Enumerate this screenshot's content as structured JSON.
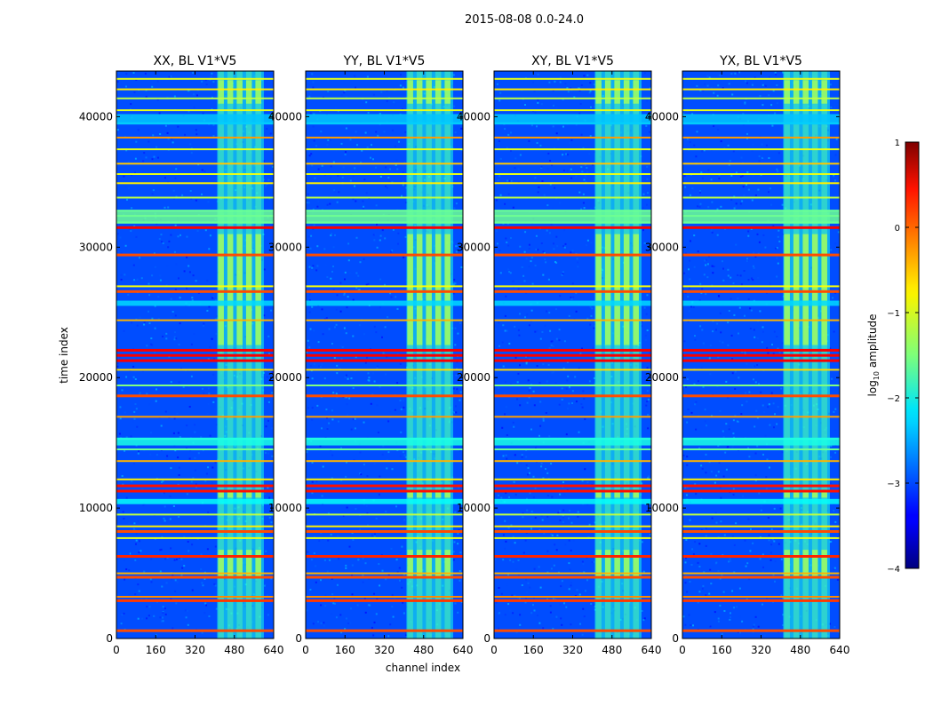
{
  "chart_data": {
    "type": "heatmap",
    "suptitle": "2015-08-08 0.0-24.0",
    "xlabel": "channel index",
    "ylabel": "time index",
    "xlim": [
      0,
      640
    ],
    "ylim": [
      0,
      43500
    ],
    "xticks": [
      0,
      160,
      320,
      480,
      640
    ],
    "yticks": [
      0,
      10000,
      20000,
      30000,
      40000
    ],
    "panels": [
      {
        "title": "XX, BL V1*V5",
        "polarization": "XX"
      },
      {
        "title": "YY, BL V1*V5",
        "polarization": "YY"
      },
      {
        "title": "XY, BL V1*V5",
        "polarization": "XY"
      },
      {
        "title": "YX, BL V1*V5",
        "polarization": "YX"
      }
    ],
    "colorbar": {
      "label": "log10 amplitude",
      "label_main": "log",
      "label_sub": "10",
      "label_rest": " amplitude",
      "range": [
        -4,
        1
      ],
      "ticks": [
        1,
        0,
        -1,
        -2,
        -3,
        -4
      ],
      "tick_labels": [
        "1",
        "0",
        "−1",
        "−2",
        "−3",
        "−4"
      ],
      "colormap": "jet"
    },
    "features": {
      "background_level": -3.0,
      "rfi_channel_band": [
        410,
        600
      ],
      "band_level": -2.0,
      "strong_band_time_ranges": [
        [
          22500,
          31000
        ],
        [
          4800,
          6800
        ],
        [
          10800,
          11400
        ],
        [
          41000,
          42800
        ]
      ],
      "rfi_time_lines": [
        {
          "t": 600,
          "level": 0.0
        },
        {
          "t": 2900,
          "level": 0.1
        },
        {
          "t": 3200,
          "level": -0.3
        },
        {
          "t": 4700,
          "level": 0.0
        },
        {
          "t": 5000,
          "level": -0.5
        },
        {
          "t": 6300,
          "level": 0.2
        },
        {
          "t": 7700,
          "level": -1.0
        },
        {
          "t": 8200,
          "level": 0.0
        },
        {
          "t": 8600,
          "level": -0.8
        },
        {
          "t": 9500,
          "level": -1.2
        },
        {
          "t": 11300,
          "level": 0.3
        },
        {
          "t": 11700,
          "level": 0.3
        },
        {
          "t": 12200,
          "level": -0.8
        },
        {
          "t": 13600,
          "level": -0.5
        },
        {
          "t": 14500,
          "level": -1.6
        },
        {
          "t": 15300,
          "level": -1.8
        },
        {
          "t": 17000,
          "level": -0.4
        },
        {
          "t": 18600,
          "level": 0.0
        },
        {
          "t": 19400,
          "level": -1.5
        },
        {
          "t": 20600,
          "level": -0.7
        },
        {
          "t": 21300,
          "level": 0.4
        },
        {
          "t": 21700,
          "level": 0.4
        },
        {
          "t": 22100,
          "level": 0.4
        },
        {
          "t": 24400,
          "level": -0.5
        },
        {
          "t": 26600,
          "level": 0.0
        },
        {
          "t": 27000,
          "level": -0.9
        },
        {
          "t": 29400,
          "level": 0.0
        },
        {
          "t": 31500,
          "level": 0.4
        },
        {
          "t": 31900,
          "level": -1.6
        },
        {
          "t": 32400,
          "level": -1.5
        },
        {
          "t": 32800,
          "level": -1.6
        },
        {
          "t": 33800,
          "level": -1.2
        },
        {
          "t": 34900,
          "level": -0.8
        },
        {
          "t": 35600,
          "level": -1.0
        },
        {
          "t": 36400,
          "level": -0.6
        },
        {
          "t": 37500,
          "level": -1.0
        },
        {
          "t": 38400,
          "level": -0.4
        },
        {
          "t": 39500,
          "level": -2.0
        },
        {
          "t": 40500,
          "level": -1.0
        },
        {
          "t": 41400,
          "level": -1.2
        },
        {
          "t": 42100,
          "level": -0.8
        },
        {
          "t": 42900,
          "level": -1.0
        }
      ]
    }
  }
}
